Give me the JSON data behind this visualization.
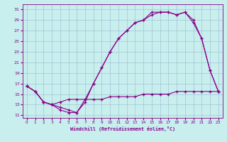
{
  "xlabel": "Windchill (Refroidissement éolien,°C)",
  "xlim": [
    -0.5,
    23.5
  ],
  "ylim": [
    10.5,
    32
  ],
  "xticks": [
    0,
    1,
    2,
    3,
    4,
    5,
    6,
    7,
    8,
    9,
    10,
    11,
    12,
    13,
    14,
    15,
    16,
    17,
    18,
    19,
    20,
    21,
    22,
    23
  ],
  "yticks": [
    11,
    13,
    15,
    17,
    19,
    21,
    23,
    25,
    27,
    29,
    31
  ],
  "bg_color": "#c8eeee",
  "line_color": "#880088",
  "grid_color": "#99bbcc",
  "curve1_x": [
    0,
    1,
    2,
    3,
    4,
    5,
    6,
    7,
    8,
    9,
    10,
    11,
    12,
    13,
    14,
    15,
    16,
    17,
    18,
    19,
    20,
    21,
    22,
    23
  ],
  "curve1_y": [
    16.5,
    15.5,
    13.5,
    13.0,
    12.5,
    12.0,
    11.5,
    14.0,
    17.0,
    20.0,
    23.0,
    25.5,
    27.0,
    28.5,
    29.0,
    30.5,
    30.5,
    30.5,
    30.0,
    30.5,
    29.0,
    25.5,
    19.5,
    15.5
  ],
  "curve2_x": [
    0,
    1,
    2,
    3,
    4,
    5,
    6,
    7,
    8,
    9,
    10,
    11,
    12,
    13,
    14,
    15,
    16,
    17,
    18,
    19,
    20,
    21,
    22,
    23
  ],
  "curve2_y": [
    16.5,
    15.5,
    13.5,
    13.0,
    12.0,
    11.5,
    11.5,
    13.5,
    17.0,
    20.0,
    23.0,
    25.5,
    27.0,
    28.5,
    29.0,
    30.0,
    30.5,
    30.5,
    30.0,
    30.5,
    28.5,
    25.5,
    19.5,
    15.5
  ],
  "curve3_x": [
    0,
    1,
    2,
    3,
    4,
    5,
    6,
    7,
    8,
    9,
    10,
    11,
    12,
    13,
    14,
    15,
    16,
    17,
    18,
    19,
    20,
    21,
    22,
    23
  ],
  "curve3_y": [
    16.5,
    15.5,
    13.5,
    13.0,
    13.5,
    14.0,
    14.0,
    14.0,
    14.0,
    14.0,
    14.5,
    14.5,
    14.5,
    14.5,
    15.0,
    15.0,
    15.0,
    15.0,
    15.5,
    15.5,
    15.5,
    15.5,
    15.5,
    15.5
  ]
}
